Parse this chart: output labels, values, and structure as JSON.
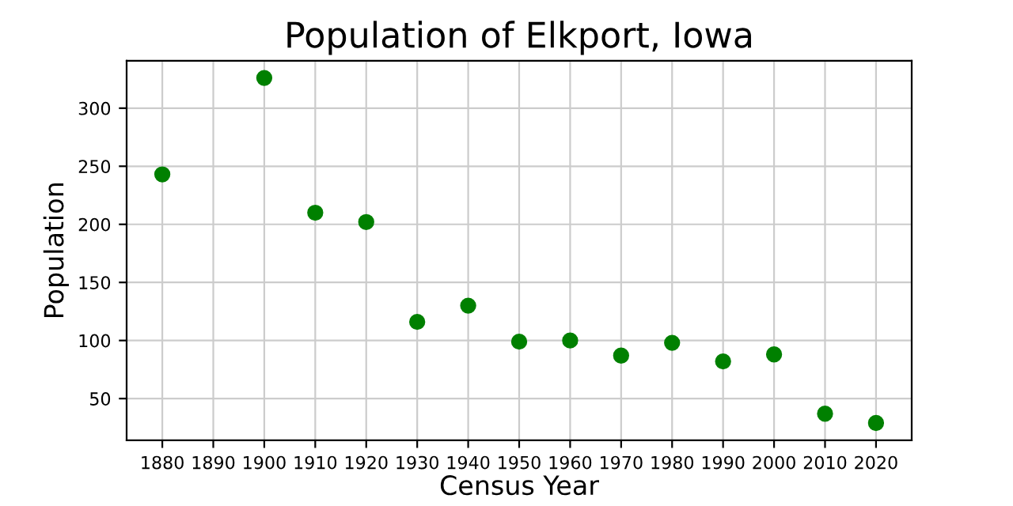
{
  "chart_data": {
    "type": "scatter",
    "title": "Population of Elkport, Iowa",
    "xlabel": "Census Year",
    "ylabel": "Population",
    "x": [
      1880,
      1900,
      1910,
      1920,
      1930,
      1940,
      1950,
      1960,
      1970,
      1980,
      1990,
      2000,
      2010,
      2020
    ],
    "series": [
      {
        "color": "#008000",
        "values": [
          243,
          326,
          210,
          202,
          116,
          130,
          99,
          100,
          87,
          98,
          82,
          88,
          37,
          29
        ]
      }
    ],
    "xlim": [
      1873,
      2027
    ],
    "xticks": [
      1880,
      1890,
      1900,
      1910,
      1920,
      1930,
      1940,
      1950,
      1960,
      1970,
      1980,
      1990,
      2000,
      2010,
      2020
    ],
    "ylim": [
      14.15,
      340.85
    ],
    "yticks": [
      50,
      100,
      150,
      200,
      250,
      300
    ],
    "grid": true,
    "marker": "circle"
  }
}
